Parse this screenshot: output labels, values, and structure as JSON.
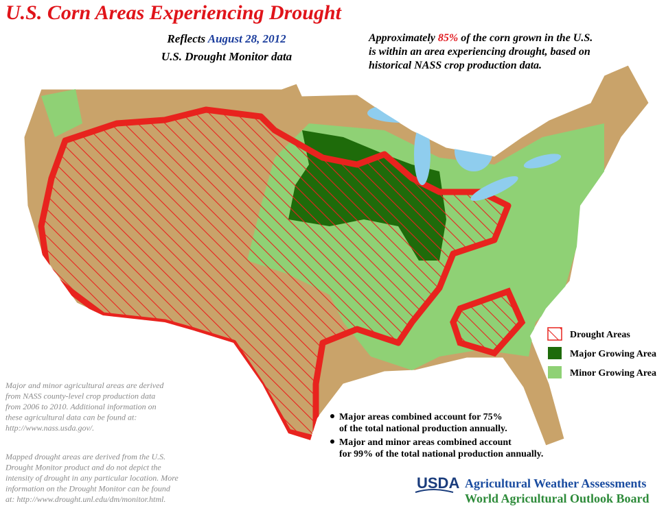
{
  "title": "U.S. Corn Areas Experiencing Drought",
  "reflects": {
    "prefix": "Reflects",
    "date": "August 28, 2012",
    "line2": "U.S. Drought Monitor data"
  },
  "summary": {
    "prefix": "Approximately",
    "percent": "85%",
    "line1_rest": "of the corn grown in the U.S.",
    "line2": "is within an area experiencing drought, based on",
    "line3": "historical NASS crop production data."
  },
  "legend": [
    {
      "label": "Drought Areas"
    },
    {
      "label": "Major Growing Area"
    },
    {
      "label": "Minor Growing Area"
    }
  ],
  "notes": [
    [
      "Major and minor agricultural areas are derived",
      "from NASS county-level crop production data",
      "from 2006 to 2010.  Additional information on",
      "these agricultural data can be found at:",
      "http://www.nass.usda.gov/."
    ],
    [
      "Mapped drought areas are derived from the U.S.",
      "Drought Monitor product and do not depict the",
      "intensity of drought in any particular location.  More",
      "information on the Drought Monitor can be found",
      "at:  http://www.drought.unl.edu/dm/monitor.html."
    ]
  ],
  "bullets": [
    [
      "Major areas combined account for 75%",
      "of the total national production annually."
    ],
    [
      "Major and minor areas combined account",
      "for 99% of the total national production annually."
    ]
  ],
  "footer": {
    "logo": "USDA",
    "line1": "Agricultural Weather Assessments",
    "line2": "World Agricultural Outlook Board"
  }
}
